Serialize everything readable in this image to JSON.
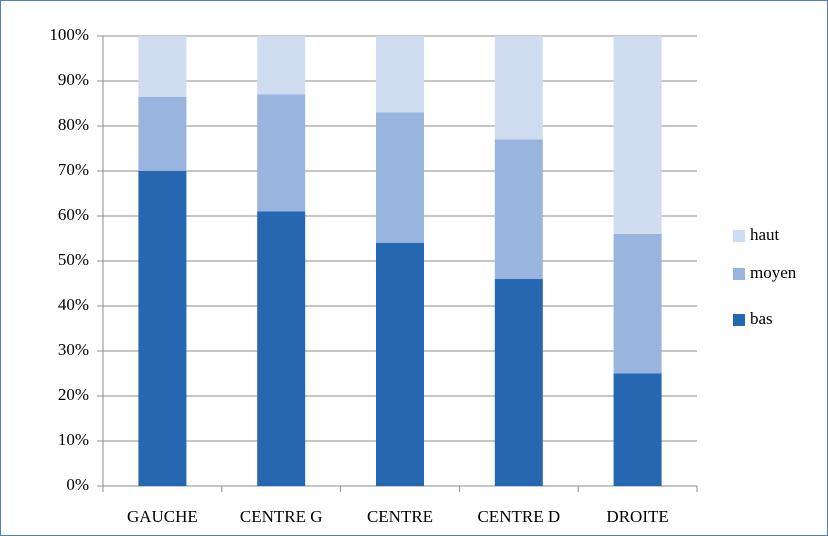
{
  "chart_data": {
    "type": "stacked_bar",
    "categories": [
      "GAUCHE",
      "CENTRE G",
      "CENTRE",
      "CENTRE D",
      "DROITE"
    ],
    "series": [
      {
        "name": "bas",
        "color": "#2567b1",
        "values": [
          70,
          61,
          54,
          46,
          25
        ]
      },
      {
        "name": "moyen",
        "color": "#99b4de",
        "values": [
          16.5,
          26,
          29,
          31,
          31
        ]
      },
      {
        "name": "haut",
        "color": "#d0dcf0",
        "values": [
          13.5,
          13,
          17,
          23,
          44
        ]
      }
    ],
    "ylim": [
      0,
      100
    ],
    "yticks": [
      {
        "value": 0,
        "label": "0%"
      },
      {
        "value": 10,
        "label": "10%"
      },
      {
        "value": 20,
        "label": "20%"
      },
      {
        "value": 30,
        "label": "30%"
      },
      {
        "value": 40,
        "label": "40%"
      },
      {
        "value": 50,
        "label": "50%"
      },
      {
        "value": 60,
        "label": "60%"
      },
      {
        "value": 70,
        "label": "70%"
      },
      {
        "value": 80,
        "label": "80%"
      },
      {
        "value": 90,
        "label": "90%"
      },
      {
        "value": 100,
        "label": "100%"
      }
    ],
    "grid": true,
    "legend": "right"
  }
}
